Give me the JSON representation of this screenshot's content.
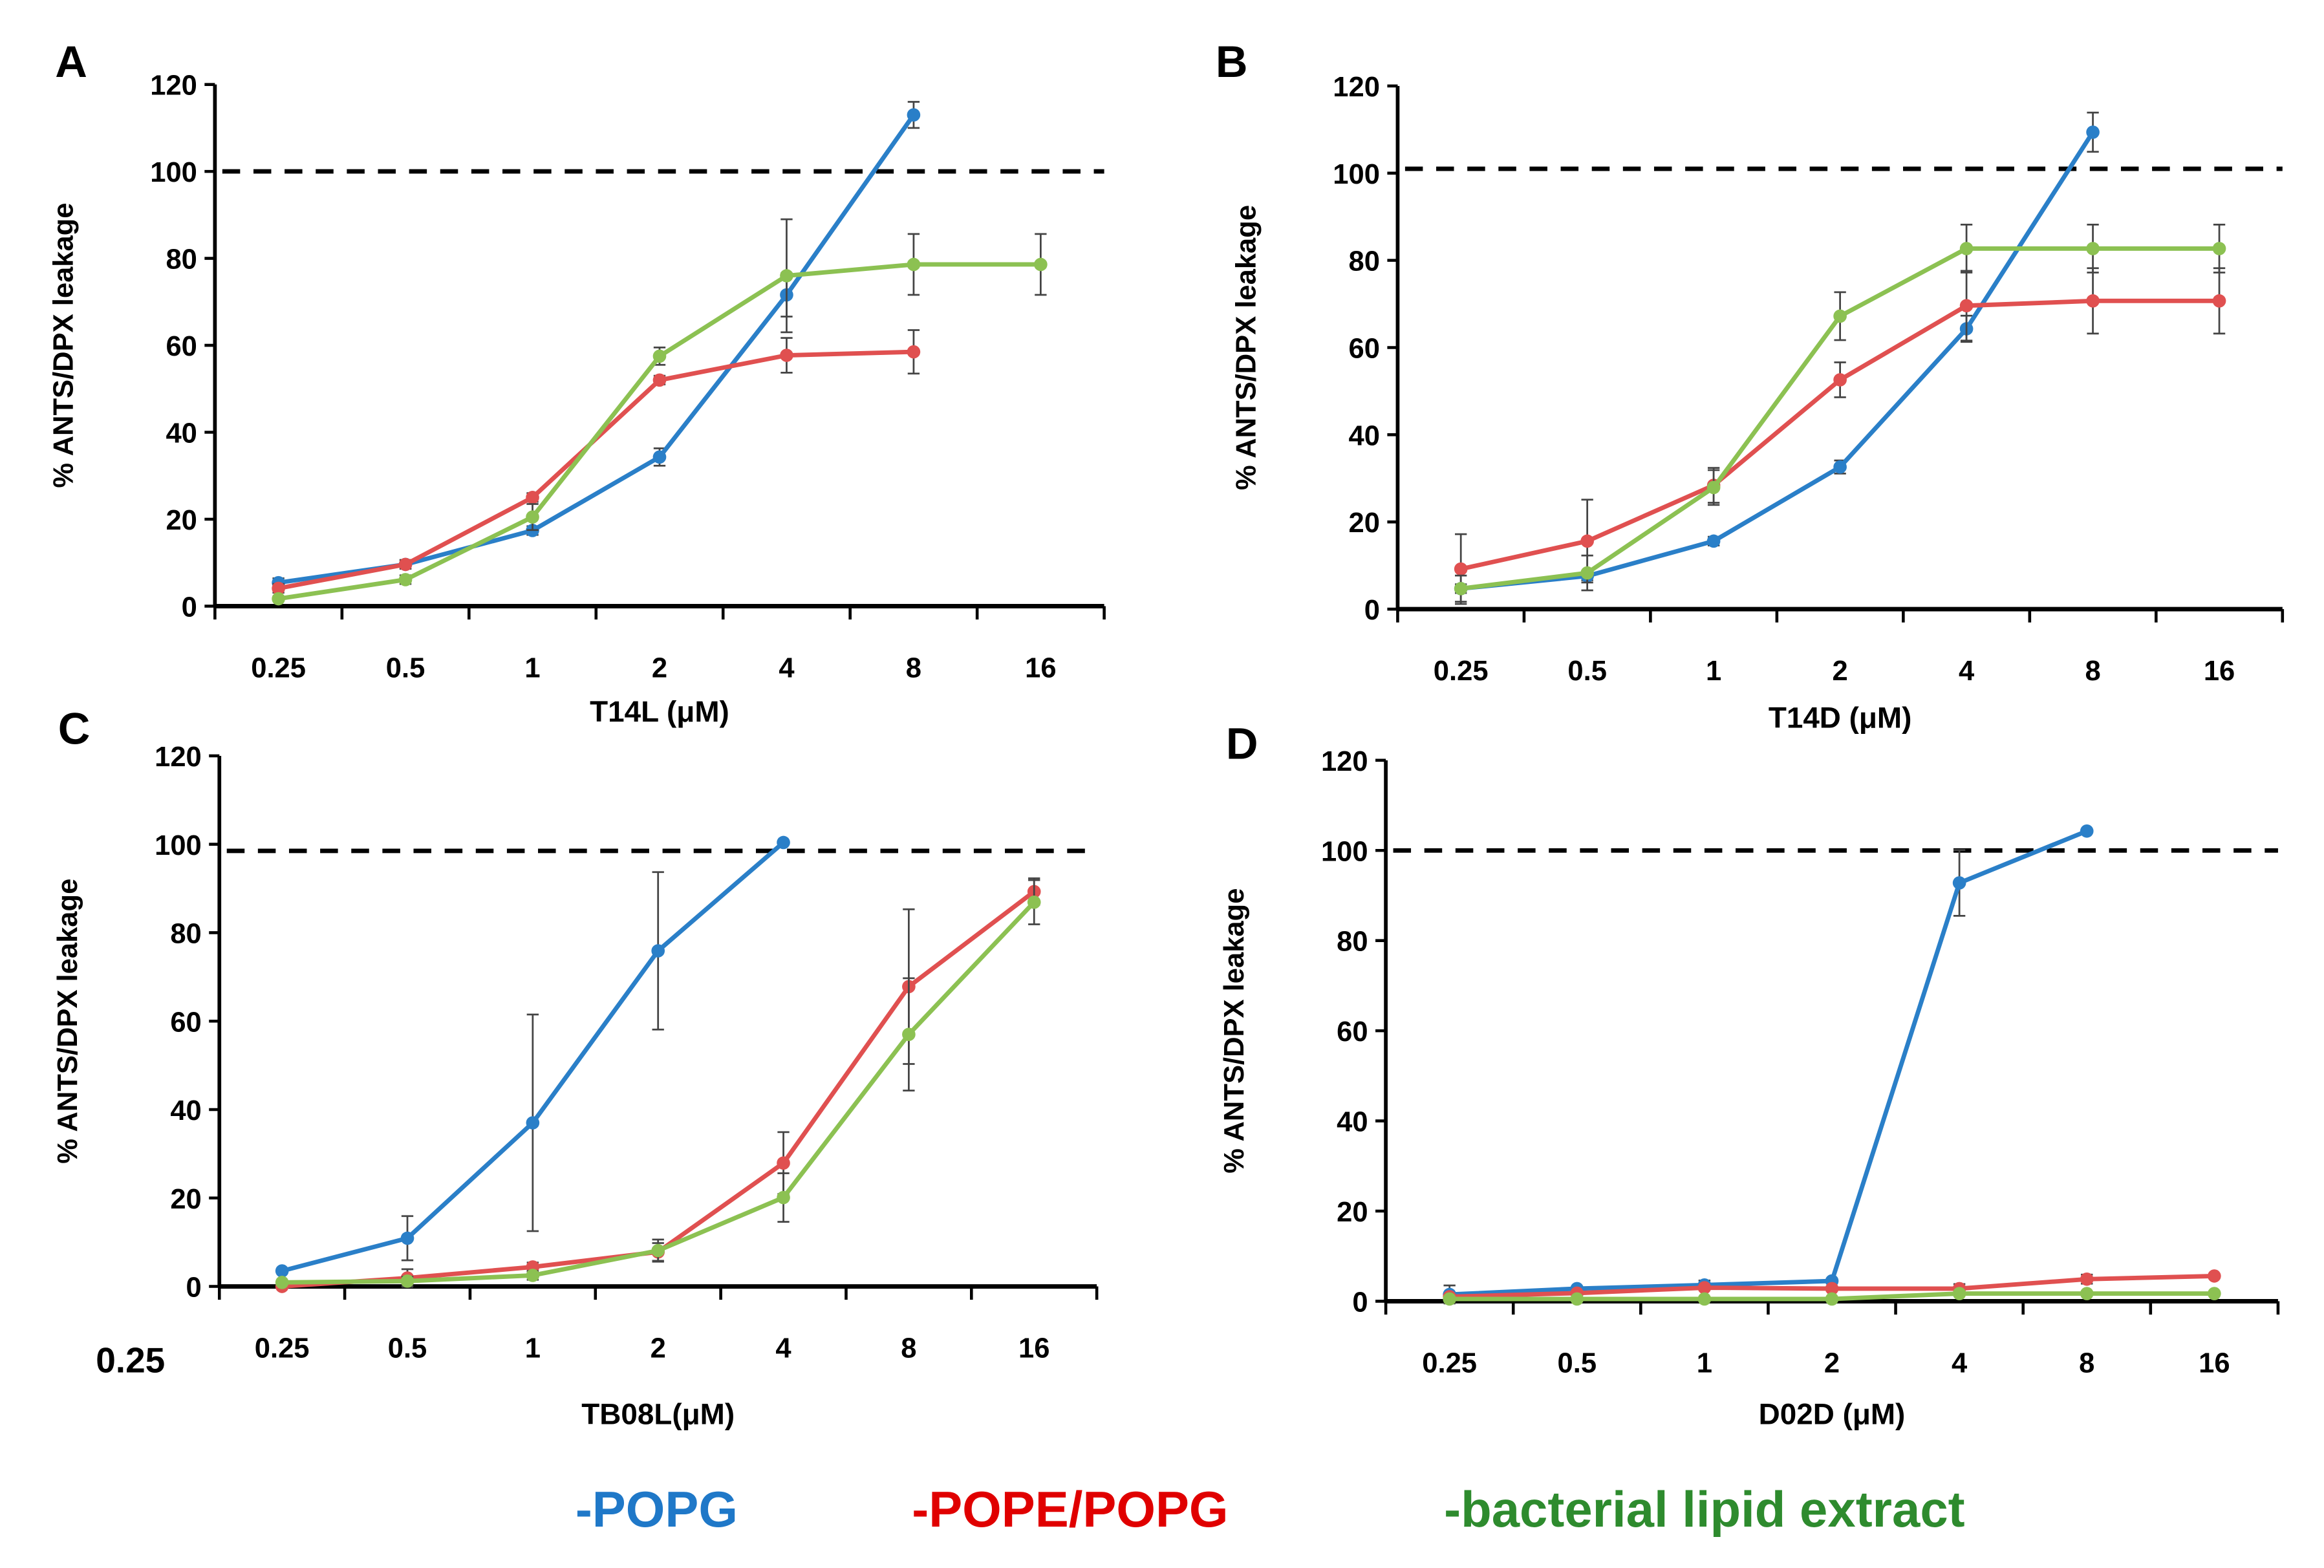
{
  "chart_data": [
    {
      "type": "line",
      "panel_label": "A",
      "xlabel": "T14L (μM)",
      "ylabel": "% ANTS/DPX leakage",
      "categories": [
        "0.25",
        "0.5",
        "1",
        "2",
        "4",
        "8",
        "16"
      ],
      "ylim": [
        0,
        120
      ],
      "yticks": [
        "0",
        "20",
        "40",
        "60",
        "80",
        "100",
        "120"
      ],
      "reference_line": 100,
      "series": [
        {
          "name": "POPG",
          "values": [
            5.4,
            9.6,
            17.4,
            34.3,
            71.6,
            113,
            null
          ],
          "errors": [
            1,
            1,
            1,
            2,
            5,
            3,
            null
          ]
        },
        {
          "name": "POPE/POPG",
          "values": [
            4.1,
            9.6,
            25,
            52,
            57.7,
            58.5,
            null
          ],
          "errors": [
            1,
            1,
            1,
            1,
            4,
            5,
            null
          ]
        },
        {
          "name": "bacterial lipid extract",
          "values": [
            1.7,
            6.1,
            20.5,
            57.5,
            76,
            78.6,
            78.6
          ],
          "errors": [
            0.5,
            1,
            3,
            2,
            13,
            7,
            7
          ]
        }
      ]
    },
    {
      "type": "line",
      "panel_label": "B",
      "xlabel": "T14D (μM)",
      "ylabel": "% ANTS/DPX leakage",
      "categories": [
        "0.25",
        "0.5",
        "1",
        "2",
        "4",
        "8",
        "16"
      ],
      "ylim": [
        0,
        120
      ],
      "yticks": [
        "0",
        "20",
        "40",
        "60",
        "80",
        "100",
        "120"
      ],
      "reference_line": 101,
      "series": [
        {
          "name": "POPG",
          "values": [
            4.7,
            7.6,
            15.6,
            32.6,
            64.3,
            109.4,
            null
          ],
          "errors": [
            1,
            1,
            1,
            1.5,
            3,
            4.5,
            null
          ]
        },
        {
          "name": "POPE/POPG",
          "values": [
            9.2,
            15.6,
            28.4,
            52.6,
            69.6,
            70.7,
            70.7
          ],
          "errors": [
            8,
            9.5,
            4,
            4,
            8,
            7.5,
            7.5
          ]
        },
        {
          "name": "bacterial lipid extract",
          "values": [
            4.7,
            8.3,
            27.9,
            67.2,
            82.7,
            82.7,
            82.7
          ],
          "errors": [
            3,
            4,
            4,
            5.5,
            5.5,
            5.5,
            5.5
          ]
        }
      ]
    },
    {
      "type": "line",
      "panel_label": "C",
      "xlabel": "TB08L(μM)",
      "ylabel": "% ANTS/DPX leakage",
      "extra_label": "0.25",
      "categories": [
        "0.25",
        "0.5",
        "1",
        "2",
        "4",
        "8",
        "16"
      ],
      "ylim": [
        0,
        120
      ],
      "yticks": [
        "0",
        "20",
        "40",
        "60",
        "80",
        "100",
        "120"
      ],
      "reference_line": 98.5,
      "series": [
        {
          "name": "POPG",
          "values": [
            3.5,
            10.9,
            37,
            75.9,
            100.4,
            null,
            null
          ],
          "errors": [
            0.5,
            5,
            24.5,
            17.8,
            0,
            null,
            null
          ]
        },
        {
          "name": "POPE/POPG",
          "values": [
            0,
            1.9,
            4.4,
            7.8,
            27.9,
            67.8,
            89.3
          ],
          "errors": [
            0.3,
            2,
            1,
            2,
            7,
            17.5,
            3
          ]
        },
        {
          "name": "bacterial lipid extract",
          "values": [
            0.9,
            1.2,
            2.5,
            8.1,
            20.1,
            57,
            86.9
          ],
          "errors": [
            0.3,
            1,
            1,
            2.5,
            5.5,
            12.7,
            5
          ]
        }
      ]
    },
    {
      "type": "line",
      "panel_label": "D",
      "xlabel": "D02D (μM)",
      "ylabel": "% ANTS/DPX leakage",
      "categories": [
        "0.25",
        "0.5",
        "1",
        "2",
        "4",
        "8",
        "16"
      ],
      "ylim": [
        0,
        120
      ],
      "yticks": [
        "0",
        "20",
        "40",
        "60",
        "80",
        "100",
        "120"
      ],
      "reference_line": 100,
      "series": [
        {
          "name": "POPG",
          "values": [
            1.5,
            2.8,
            3.6,
            4.5,
            92.8,
            104.3,
            null
          ],
          "errors": [
            2,
            0.5,
            1,
            0.5,
            7.3,
            0,
            null
          ]
        },
        {
          "name": "POPE/POPG",
          "values": [
            1,
            1.8,
            3,
            2.8,
            2.8,
            4.9,
            5.6
          ],
          "errors": [
            0.5,
            0.5,
            0.5,
            0.5,
            1,
            1,
            0.5
          ]
        },
        {
          "name": "bacterial lipid extract",
          "values": [
            0.5,
            0.5,
            0.5,
            0.5,
            1.7,
            1.7,
            1.7
          ],
          "errors": [
            0,
            0,
            0,
            0,
            0,
            0,
            0
          ]
        }
      ]
    }
  ],
  "legend": {
    "items": [
      {
        "label": "-POPG",
        "color": "#1f78c8"
      },
      {
        "label": "-POPE/POPG",
        "color": "#e00000"
      },
      {
        "label": "-bacterial lipid extract",
        "color": "#2e8b2e"
      }
    ]
  },
  "series_colors": [
    "#2a7fc8",
    "#e05050",
    "#8cc152"
  ]
}
